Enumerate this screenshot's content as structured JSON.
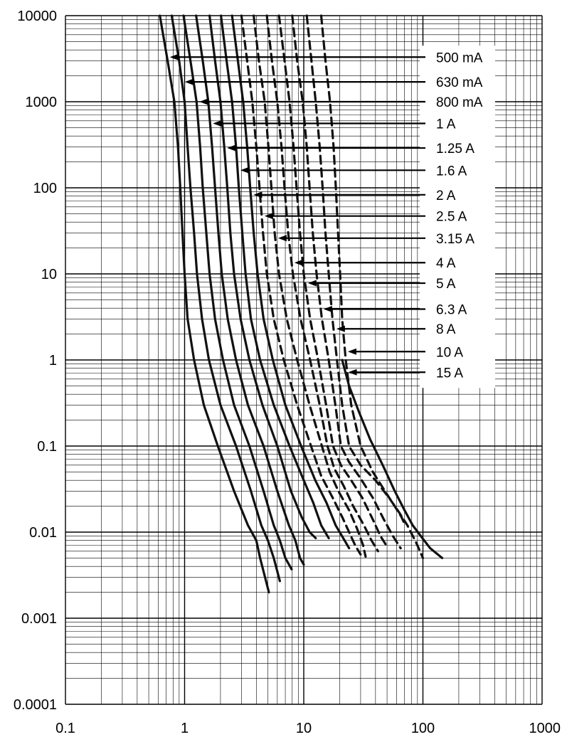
{
  "chart_data": {
    "type": "line",
    "title": "",
    "xlabel": "",
    "ylabel": "",
    "x_scale": "log",
    "y_scale": "log",
    "xlim": [
      0.1,
      1000
    ],
    "ylim": [
      0.0001,
      10000
    ],
    "grid": true,
    "legend": "right, labels with arrows pointing to curves",
    "x_tick_labels": [
      "0.1",
      "1",
      "10",
      "100",
      "1000"
    ],
    "y_tick_labels": [
      "10000",
      "1000",
      "100",
      "10",
      "1",
      "0.1",
      "0.01",
      "0.001",
      "0.0001"
    ],
    "series": [
      {
        "name": "500 mA",
        "dashed": false,
        "label_y": 3300,
        "points": [
          [
            0.62,
            10000
          ],
          [
            0.72,
            3000
          ],
          [
            0.82,
            1000
          ],
          [
            0.88,
            300
          ],
          [
            0.92,
            100
          ],
          [
            0.96,
            30
          ],
          [
            1.0,
            10
          ],
          [
            1.06,
            3
          ],
          [
            1.2,
            1
          ],
          [
            1.45,
            0.3
          ],
          [
            1.9,
            0.1
          ],
          [
            2.6,
            0.03
          ],
          [
            3.4,
            0.012
          ],
          [
            4.0,
            0.008
          ],
          [
            4.3,
            0.005
          ],
          [
            5.1,
            0.002
          ]
        ]
      },
      {
        "name": "630 mA",
        "dashed": false,
        "label_y": 1700,
        "points": [
          [
            0.78,
            10000
          ],
          [
            0.9,
            3000
          ],
          [
            1.0,
            1000
          ],
          [
            1.06,
            300
          ],
          [
            1.12,
            100
          ],
          [
            1.2,
            30
          ],
          [
            1.27,
            10
          ],
          [
            1.4,
            3
          ],
          [
            1.6,
            1
          ],
          [
            2.0,
            0.3
          ],
          [
            2.7,
            0.1
          ],
          [
            3.6,
            0.03
          ],
          [
            4.4,
            0.012
          ],
          [
            5.0,
            0.008
          ],
          [
            5.6,
            0.005
          ],
          [
            6.3,
            0.0027
          ]
        ]
      },
      {
        "name": "800 mA",
        "dashed": false,
        "label_y": 1000,
        "points": [
          [
            0.98,
            10000
          ],
          [
            1.12,
            3000
          ],
          [
            1.26,
            1000
          ],
          [
            1.35,
            300
          ],
          [
            1.42,
            100
          ],
          [
            1.52,
            30
          ],
          [
            1.62,
            10
          ],
          [
            1.8,
            3
          ],
          [
            2.1,
            1
          ],
          [
            2.6,
            0.3
          ],
          [
            3.5,
            0.1
          ],
          [
            4.6,
            0.03
          ],
          [
            5.6,
            0.012
          ],
          [
            6.3,
            0.008
          ],
          [
            7.0,
            0.005
          ],
          [
            7.9,
            0.0037
          ]
        ]
      },
      {
        "name": "1 A",
        "dashed": false,
        "label_y": 560,
        "points": [
          [
            1.25,
            10000
          ],
          [
            1.42,
            3000
          ],
          [
            1.58,
            1000
          ],
          [
            1.7,
            300
          ],
          [
            1.8,
            100
          ],
          [
            1.92,
            30
          ],
          [
            2.05,
            10
          ],
          [
            2.3,
            3
          ],
          [
            2.7,
            1
          ],
          [
            3.4,
            0.3
          ],
          [
            4.6,
            0.1
          ],
          [
            6.0,
            0.03
          ],
          [
            7.5,
            0.012
          ],
          [
            8.5,
            0.008
          ],
          [
            9.3,
            0.005
          ],
          [
            10.0,
            0.0042
          ]
        ]
      },
      {
        "name": "1.25 A",
        "dashed": false,
        "label_y": 290,
        "points": [
          [
            1.62,
            10000
          ],
          [
            1.8,
            3000
          ],
          [
            2.0,
            1000
          ],
          [
            2.15,
            300
          ],
          [
            2.28,
            100
          ],
          [
            2.42,
            30
          ],
          [
            2.6,
            10
          ],
          [
            2.95,
            3
          ],
          [
            3.5,
            1
          ],
          [
            4.5,
            0.3
          ],
          [
            6.0,
            0.1
          ],
          [
            7.8,
            0.03
          ],
          [
            9.6,
            0.015
          ],
          [
            11.2,
            0.01
          ],
          [
            12.6,
            0.0085
          ]
        ]
      },
      {
        "name": "1.6 A",
        "dashed": false,
        "label_y": 160,
        "points": [
          [
            2.02,
            10000
          ],
          [
            2.25,
            3000
          ],
          [
            2.5,
            1000
          ],
          [
            2.7,
            300
          ],
          [
            2.85,
            100
          ],
          [
            3.05,
            30
          ],
          [
            3.25,
            10
          ],
          [
            3.6,
            3
          ],
          [
            4.3,
            1
          ],
          [
            5.6,
            0.3
          ],
          [
            7.6,
            0.1
          ],
          [
            10.0,
            0.04
          ],
          [
            12.0,
            0.022
          ],
          [
            14.0,
            0.012
          ],
          [
            16.2,
            0.0085
          ]
        ]
      },
      {
        "name": "2 A",
        "dashed": false,
        "label_y": 83,
        "points": [
          [
            2.5,
            10000
          ],
          [
            2.8,
            3000
          ],
          [
            3.1,
            1000
          ],
          [
            3.35,
            300
          ],
          [
            3.55,
            100
          ],
          [
            3.8,
            30
          ],
          [
            4.1,
            10
          ],
          [
            4.6,
            3
          ],
          [
            5.5,
            1
          ],
          [
            7.0,
            0.3
          ],
          [
            9.5,
            0.1
          ],
          [
            12.5,
            0.04
          ],
          [
            15.5,
            0.022
          ],
          [
            18.5,
            0.012
          ],
          [
            22.0,
            0.008
          ],
          [
            24.0,
            0.0065
          ]
        ]
      },
      {
        "name": "2.5 A",
        "dashed": true,
        "label_y": 47,
        "points": [
          [
            3.0,
            10000
          ],
          [
            3.35,
            3000
          ],
          [
            3.7,
            1000
          ],
          [
            4.0,
            300
          ],
          [
            4.25,
            100
          ],
          [
            4.55,
            30
          ],
          [
            4.9,
            10
          ],
          [
            5.6,
            3
          ],
          [
            6.8,
            1
          ],
          [
            8.8,
            0.3
          ],
          [
            11.5,
            0.1
          ],
          [
            14.0,
            0.045
          ],
          [
            17.5,
            0.025
          ],
          [
            21.0,
            0.015
          ],
          [
            24.0,
            0.01
          ],
          [
            27.0,
            0.007
          ],
          [
            30.0,
            0.0055
          ]
        ]
      },
      {
        "name": "3.15 A",
        "dashed": true,
        "label_y": 26,
        "points": [
          [
            3.8,
            10000
          ],
          [
            4.2,
            3000
          ],
          [
            4.7,
            1000
          ],
          [
            5.05,
            300
          ],
          [
            5.35,
            100
          ],
          [
            5.7,
            30
          ],
          [
            6.2,
            10
          ],
          [
            7.2,
            3
          ],
          [
            8.8,
            1
          ],
          [
            11.2,
            0.3
          ],
          [
            14.2,
            0.1
          ],
          [
            16.5,
            0.05
          ],
          [
            19.5,
            0.03
          ],
          [
            24.0,
            0.018
          ],
          [
            28.0,
            0.011
          ],
          [
            31.5,
            0.007
          ],
          [
            33.0,
            0.0052
          ]
        ]
      },
      {
        "name": "4 A",
        "dashed": true,
        "label_y": 13.5,
        "points": [
          [
            4.9,
            10000
          ],
          [
            5.4,
            3000
          ],
          [
            6.0,
            1000
          ],
          [
            6.5,
            300
          ],
          [
            6.9,
            100
          ],
          [
            7.4,
            30
          ],
          [
            8.1,
            10
          ],
          [
            9.4,
            3
          ],
          [
            11.3,
            1
          ],
          [
            13.6,
            0.3
          ],
          [
            15.8,
            0.1
          ],
          [
            18.0,
            0.055
          ],
          [
            21.5,
            0.035
          ],
          [
            26.0,
            0.02
          ],
          [
            32.0,
            0.012
          ],
          [
            37.0,
            0.008
          ],
          [
            42.0,
            0.006
          ]
        ]
      },
      {
        "name": "5 A",
        "dashed": true,
        "label_y": 7.8,
        "points": [
          [
            6.2,
            10000
          ],
          [
            6.9,
            3000
          ],
          [
            7.6,
            1000
          ],
          [
            8.2,
            300
          ],
          [
            8.7,
            100
          ],
          [
            9.3,
            30
          ],
          [
            10.0,
            10
          ],
          [
            11.3,
            3
          ],
          [
            13.2,
            1
          ],
          [
            15.4,
            0.3
          ],
          [
            17.6,
            0.1
          ],
          [
            20.5,
            0.06
          ],
          [
            25.0,
            0.04
          ],
          [
            31.0,
            0.025
          ],
          [
            38.0,
            0.014
          ],
          [
            44.0,
            0.009
          ],
          [
            51.0,
            0.0065
          ]
        ]
      },
      {
        "name": "6.3 A",
        "dashed": true,
        "label_y": 3.9,
        "points": [
          [
            8.0,
            10000
          ],
          [
            8.8,
            3000
          ],
          [
            9.8,
            1000
          ],
          [
            10.6,
            300
          ],
          [
            11.2,
            100
          ],
          [
            11.9,
            30
          ],
          [
            12.8,
            10
          ],
          [
            14.2,
            3
          ],
          [
            16.2,
            1
          ],
          [
            18.4,
            0.3
          ],
          [
            20.5,
            0.1
          ],
          [
            24.0,
            0.065
          ],
          [
            30.0,
            0.042
          ],
          [
            38.0,
            0.025
          ],
          [
            47.0,
            0.014
          ],
          [
            56.0,
            0.009
          ],
          [
            65.0,
            0.0065
          ]
        ]
      },
      {
        "name": "8 A",
        "dashed": true,
        "label_y": 2.3,
        "points": [
          [
            10.6,
            10000
          ],
          [
            11.6,
            3000
          ],
          [
            12.6,
            1000
          ],
          [
            13.6,
            300
          ],
          [
            14.4,
            100
          ],
          [
            15.2,
            30
          ],
          [
            16.2,
            10
          ],
          [
            17.4,
            3
          ],
          [
            19.0,
            1
          ],
          [
            21.0,
            0.3
          ],
          [
            24.0,
            0.1
          ],
          [
            30.0,
            0.06
          ],
          [
            40.0,
            0.04
          ],
          [
            52.0,
            0.025
          ],
          [
            63.0,
            0.017
          ],
          [
            74.0,
            0.012
          ],
          [
            88.0,
            0.0075
          ],
          [
            100.0,
            0.005
          ]
        ]
      },
      {
        "name": "10 A",
        "dashed": true,
        "label_y": 1.25,
        "points": [
          [
            14.0,
            10000
          ],
          [
            15.2,
            3000
          ],
          [
            16.6,
            1000
          ],
          [
            17.8,
            300
          ],
          [
            18.6,
            100
          ],
          [
            19.4,
            30
          ],
          [
            20.2,
            10
          ],
          [
            21.0,
            3
          ],
          [
            22.5,
            1
          ],
          [
            25.0,
            0.3
          ],
          [
            30.0,
            0.1
          ],
          [
            38.0,
            0.05
          ],
          [
            48.0,
            0.03
          ],
          [
            58.0,
            0.02
          ],
          [
            66.0,
            0.015
          ],
          [
            71.0,
            0.012
          ]
        ]
      },
      {
        "name": "15 A",
        "dashed": false,
        "label_y": 0.72,
        "points": [
          [
            21.0,
            1
          ],
          [
            24.0,
            0.5
          ],
          [
            29.0,
            0.25
          ],
          [
            36.0,
            0.12
          ],
          [
            46.0,
            0.06
          ],
          [
            58.0,
            0.03
          ],
          [
            70.0,
            0.018
          ],
          [
            82.0,
            0.012
          ],
          [
            96.0,
            0.009
          ],
          [
            115.0,
            0.0065
          ],
          [
            145.0,
            0.005
          ]
        ]
      }
    ]
  }
}
